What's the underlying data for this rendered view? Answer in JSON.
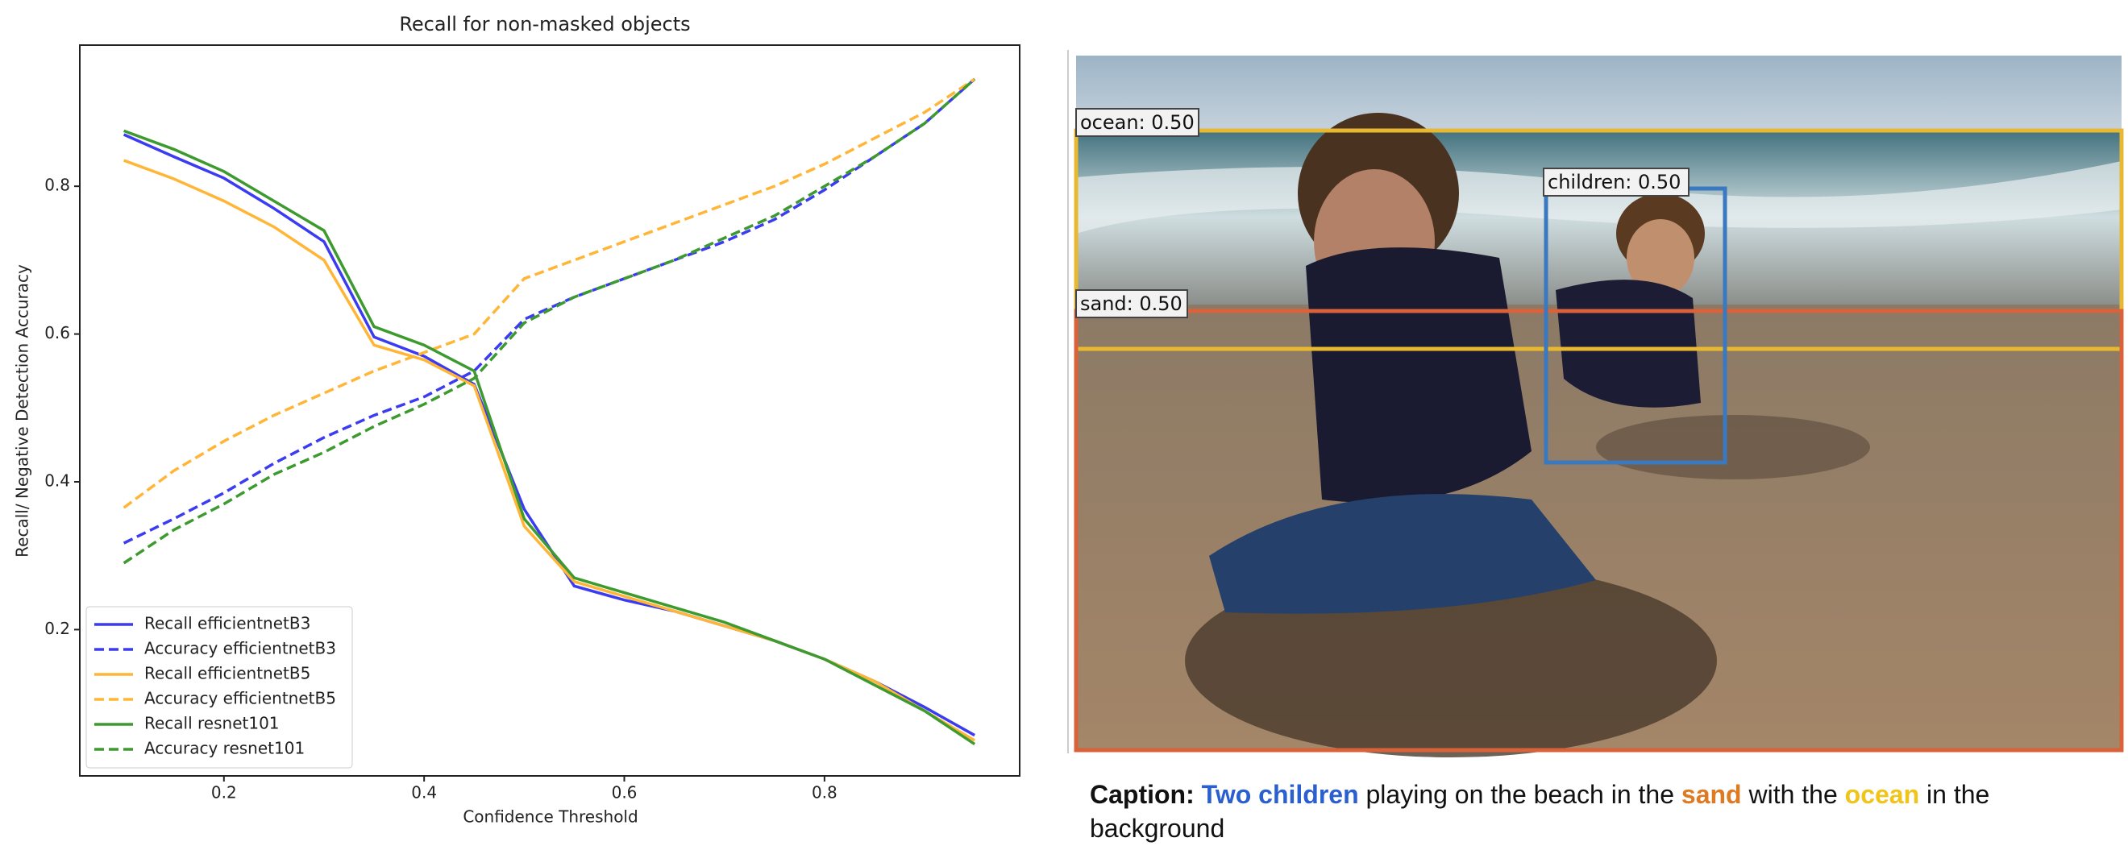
{
  "chart_data": {
    "type": "line",
    "title": "Recall for non-masked objects",
    "x_label": "Confidence Threshold",
    "y_label": "Recall/ Negative Detection Accuracy",
    "x": [
      0.1,
      0.15,
      0.2,
      0.25,
      0.3,
      0.35,
      0.4,
      0.45,
      0.5,
      0.55,
      0.6,
      0.65,
      0.7,
      0.75,
      0.8,
      0.85,
      0.9,
      0.95
    ],
    "xlim": [
      0.056,
      0.995
    ],
    "ylim": [
      0.002,
      0.991
    ],
    "xticks": [
      0.2,
      0.4,
      0.6,
      0.8
    ],
    "yticks": [
      0.2,
      0.4,
      0.6,
      0.8
    ],
    "legend": "lower left",
    "series": [
      {
        "name": "Recall efficientnetB3",
        "color": "#3b3bf2",
        "linestyle": "solid",
        "values": [
          0.87,
          0.84,
          0.811,
          0.77,
          0.725,
          0.596,
          0.57,
          0.532,
          0.363,
          0.259,
          0.24,
          0.225,
          0.205,
          0.185,
          0.16,
          0.13,
          0.095,
          0.057
        ]
      },
      {
        "name": "Accuracy efficientnetB3",
        "color": "#3b3bf2",
        "linestyle": "dashed",
        "values": [
          0.317,
          0.35,
          0.385,
          0.425,
          0.46,
          0.49,
          0.515,
          0.55,
          0.62,
          0.65,
          0.675,
          0.7,
          0.725,
          0.755,
          0.795,
          0.84,
          0.885,
          0.945
        ]
      },
      {
        "name": "Recall efficientnetB5",
        "color": "#ffb637",
        "linestyle": "solid",
        "values": [
          0.835,
          0.81,
          0.78,
          0.745,
          0.7,
          0.585,
          0.565,
          0.53,
          0.34,
          0.265,
          0.245,
          0.225,
          0.205,
          0.185,
          0.16,
          0.13,
          0.09,
          0.05
        ]
      },
      {
        "name": "Accuracy efficientnetB5",
        "color": "#ffb637",
        "linestyle": "dashed",
        "values": [
          0.365,
          0.415,
          0.455,
          0.49,
          0.52,
          0.55,
          0.575,
          0.6,
          0.675,
          0.7,
          0.725,
          0.75,
          0.775,
          0.8,
          0.83,
          0.865,
          0.9,
          0.945
        ]
      },
      {
        "name": "Recall resnet101",
        "color": "#3d9a2f",
        "linestyle": "solid",
        "values": [
          0.875,
          0.85,
          0.82,
          0.78,
          0.74,
          0.61,
          0.585,
          0.55,
          0.35,
          0.27,
          0.25,
          0.23,
          0.21,
          0.185,
          0.16,
          0.125,
          0.09,
          0.045
        ]
      },
      {
        "name": "Accuracy resnet101",
        "color": "#3d9a2f",
        "linestyle": "dashed",
        "values": [
          0.29,
          0.335,
          0.37,
          0.41,
          0.44,
          0.475,
          0.505,
          0.54,
          0.615,
          0.65,
          0.675,
          0.7,
          0.73,
          0.76,
          0.8,
          0.84,
          0.885,
          0.945
        ]
      }
    ]
  },
  "image": {
    "boxes": [
      {
        "label": "ocean: 0.50"
      },
      {
        "label": "children: 0.50"
      },
      {
        "label": "sand: 0.50"
      }
    ]
  },
  "caption": {
    "segments": [
      "Caption:",
      "Two children",
      "playing on the beach in the",
      "sand",
      "with the",
      "ocean",
      "in the background"
    ]
  }
}
